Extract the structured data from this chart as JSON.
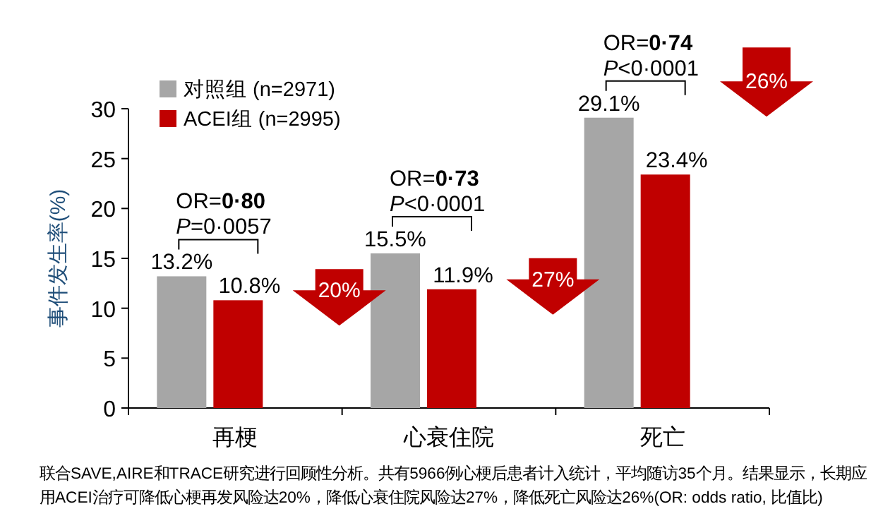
{
  "chart_data": {
    "type": "bar",
    "categories": [
      "再梗",
      "心衰住院",
      "死亡"
    ],
    "series": [
      {
        "name": "对照组 (n=2971)",
        "color": "#a6a6a6",
        "values": [
          13.2,
          15.5,
          29.1
        ],
        "value_labels": [
          "13.2%",
          "15.5%",
          "29.1%"
        ]
      },
      {
        "name": "ACEI组 (n=2995)",
        "color": "#c00000",
        "values": [
          10.8,
          11.9,
          23.4
        ],
        "value_labels": [
          "10.8%",
          "11.9%",
          "23.4%"
        ]
      }
    ],
    "ylabel": "事件发生率(%)",
    "ylim": [
      0,
      30
    ],
    "yticks": [
      0,
      5,
      10,
      15,
      20,
      25,
      30
    ],
    "legend": "top left",
    "grid": false,
    "annotations": [
      "OR=**0·80**",
      "*P*=0·0057",
      "OR=**0·73**",
      "*P*<0·0001",
      "OR=**0·74**",
      "*P*<0·0001",
      "20%",
      "27%",
      "26%",
      "联合SAVE,AIRE和TRACE研究进行回顾性分析。共有5966例心梗后患者计入统计，平均随访35个月。结果显示，长期应用ACEI治疗可降低心梗再发风险达20%，降低心衰住院风险达27%，降低死亡风险达26%(OR:  odds ratio, 比值比)"
    ]
  }
}
